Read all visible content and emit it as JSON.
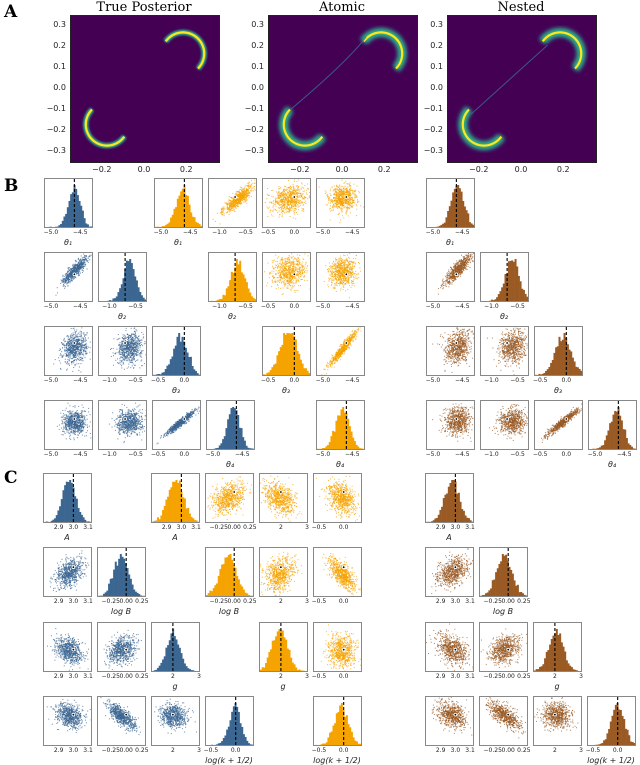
{
  "sections": {
    "A": "A",
    "B": "B",
    "C": "C"
  },
  "panelA": {
    "titles": [
      "True Posterior",
      "Atomic",
      "Nested"
    ],
    "yticks": [
      "0.3",
      "0.2",
      "0.1",
      "0.0",
      "−0.1",
      "−0.2",
      "−0.3"
    ],
    "xticks": [
      "−0.2",
      "0.0",
      "0.2"
    ]
  },
  "panelB": {
    "params": [
      "θ₁",
      "θ₂",
      "θ₃",
      "θ₄"
    ],
    "ticks": [
      [
        "−5.0",
        "−4.5"
      ],
      [
        "−1.0",
        "−0.5"
      ],
      [
        "−0.5",
        "0.0"
      ],
      [
        "−5.0",
        "−4.5"
      ]
    ]
  },
  "panelC": {
    "params": [
      "A",
      "log B",
      "g",
      "log(k + 1/2)"
    ],
    "ticks": [
      [
        "2.9",
        "3.0",
        "3.1"
      ],
      [
        "−0.25",
        "0.00",
        "0.25"
      ],
      [
        "2",
        "3"
      ],
      [
        "−0.5",
        "0.0"
      ]
    ]
  },
  "colors": {
    "true_posterior": "#3b6691",
    "atomic": "#f5a300",
    "nested": "#9a5a24",
    "heat_bg": "#440154",
    "heat_ring": "#fde725",
    "heat_ring_mid": "#35b779"
  },
  "chart_data": [
    {
      "type": "heatmap",
      "title": "True Posterior",
      "xlim": [
        -0.35,
        0.35
      ],
      "ylim": [
        -0.35,
        0.35
      ],
      "xticks": [
        -0.2,
        0.0,
        0.2
      ],
      "yticks": [
        -0.3,
        -0.2,
        -0.1,
        0.0,
        0.1,
        0.2,
        0.3
      ],
      "description": "Two crescent arcs centred near (0.18, 0.18) and (-0.18, -0.18), radius about 0.1"
    },
    {
      "type": "heatmap",
      "title": "Atomic",
      "xlim": [
        -0.35,
        0.35
      ],
      "ylim": [
        -0.35,
        0.35
      ],
      "xticks": [
        -0.2,
        0.0,
        0.2
      ],
      "yticks": [
        -0.3,
        -0.2,
        -0.1,
        0.0,
        0.1,
        0.2,
        0.3
      ],
      "description": "Two crescent arcs joined by a faint diagonal filament"
    },
    {
      "type": "heatmap",
      "title": "Nested",
      "xlim": [
        -0.35,
        0.35
      ],
      "ylim": [
        -0.35,
        0.35
      ],
      "xticks": [
        -0.2,
        0.0,
        0.2
      ],
      "yticks": [
        -0.3,
        -0.2,
        -0.1,
        0.0,
        0.1,
        0.2,
        0.3
      ],
      "description": "Two crescent arcs joined by a faint diagonal filament"
    },
    {
      "type": "corner",
      "section": "B",
      "parameters": [
        "theta1",
        "theta2",
        "theta3",
        "theta4"
      ],
      "true_values": [
        -4.6,
        -0.7,
        0.0,
        -4.6
      ],
      "ranges": [
        [
          -5.1,
          -4.3
        ],
        [
          -1.2,
          -0.3
        ],
        [
          -0.6,
          0.3
        ],
        [
          -5.1,
          -4.3
        ]
      ],
      "methods": [
        "True Posterior",
        "Atomic",
        "Nested"
      ]
    },
    {
      "type": "corner",
      "section": "C",
      "parameters": [
        "A",
        "log B",
        "g",
        "log(k + 1/2)"
      ],
      "true_values": [
        3.0,
        0.0,
        2.0,
        0.0
      ],
      "ranges": [
        [
          2.8,
          3.12
        ],
        [
          -0.45,
          0.3
        ],
        [
          1.2,
          3.0
        ],
        [
          -0.6,
          0.35
        ]
      ],
      "methods": [
        "True Posterior",
        "Atomic",
        "Nested"
      ]
    }
  ]
}
